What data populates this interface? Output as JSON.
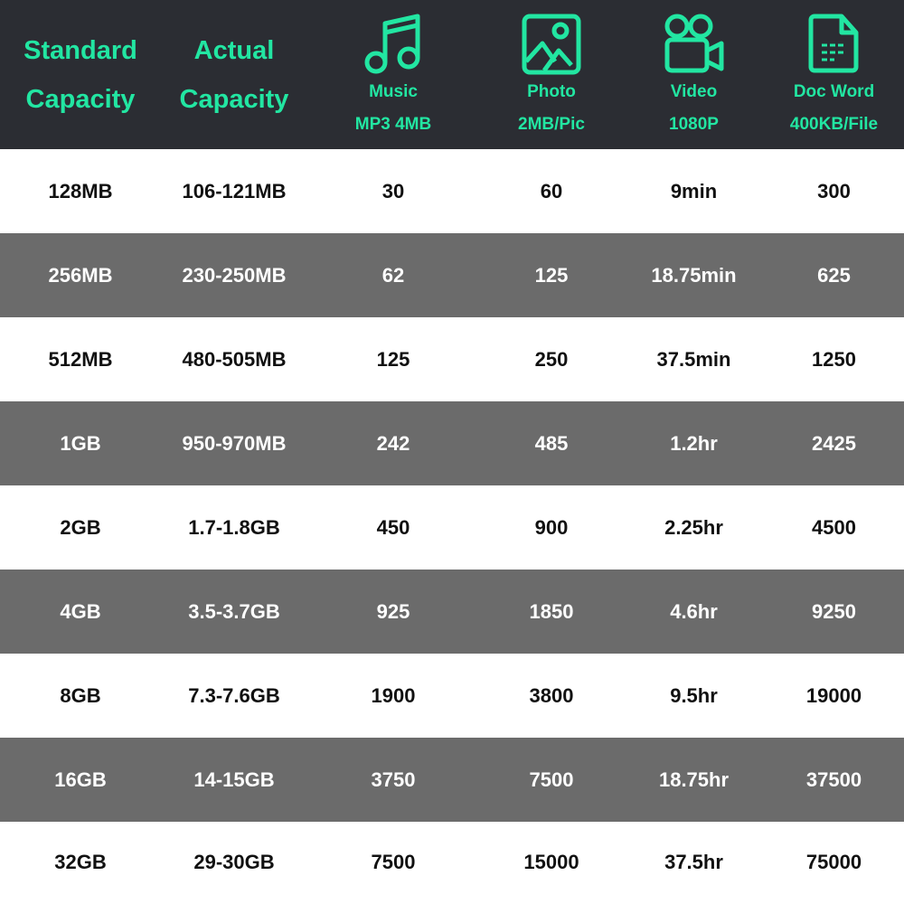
{
  "header": {
    "standard": [
      "Standard",
      "Capacity"
    ],
    "actual": [
      "Actual",
      "Capacity"
    ],
    "columns": [
      {
        "icon": "music-note-icon",
        "label": "Music",
        "sub": "MP3 4MB"
      },
      {
        "icon": "photo-icon",
        "label": "Photo",
        "sub": "2MB/Pic"
      },
      {
        "icon": "video-camera-icon",
        "label": "Video",
        "sub": "1080P"
      },
      {
        "icon": "document-icon",
        "label": "Doc Word",
        "sub": "400KB/File"
      }
    ]
  },
  "colors": {
    "accent": "#22e6a2",
    "header_bg": "#2b2d33",
    "alt_row": "#6b6b6b"
  },
  "rows": [
    [
      "128MB",
      "106-121MB",
      "30",
      "60",
      "9min",
      "300"
    ],
    [
      "256MB",
      "230-250MB",
      "62",
      "125",
      "18.75min",
      "625"
    ],
    [
      "512MB",
      "480-505MB",
      "125",
      "250",
      "37.5min",
      "1250"
    ],
    [
      "1GB",
      "950-970MB",
      "242",
      "485",
      "1.2hr",
      "2425"
    ],
    [
      "2GB",
      "1.7-1.8GB",
      "450",
      "900",
      "2.25hr",
      "4500"
    ],
    [
      "4GB",
      "3.5-3.7GB",
      "925",
      "1850",
      "4.6hr",
      "9250"
    ],
    [
      "8GB",
      "7.3-7.6GB",
      "1900",
      "3800",
      "9.5hr",
      "19000"
    ],
    [
      "16GB",
      "14-15GB",
      "3750",
      "7500",
      "18.75hr",
      "37500"
    ],
    [
      "32GB",
      "29-30GB",
      "7500",
      "15000",
      "37.5hr",
      "75000"
    ]
  ]
}
